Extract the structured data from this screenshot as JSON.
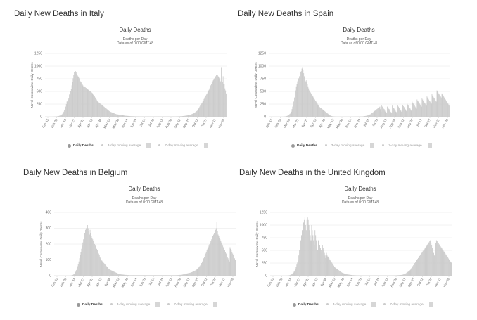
{
  "chart_data": [
    {
      "type": "bar",
      "heading": "Daily New Deaths in Italy",
      "title": "Daily Deaths",
      "subtitle": [
        "Deaths per Day",
        "Data as of 0:00 GMT+8"
      ],
      "ylabel": "Novel Coronavirus Daily Deaths",
      "ylim": [
        0,
        1250
      ],
      "yticks": [
        0,
        250,
        500,
        750,
        1000,
        1250
      ],
      "xticks": [
        "Feb 15",
        "Feb 26",
        "Mar 10",
        "Mar 21",
        "Apr 01",
        "Apr 15",
        "Apr 30",
        "May 15",
        "May 30",
        "Jun 14",
        "Jun 29",
        "Jul 14",
        "Jul 29",
        "Aug 13",
        "Aug 28",
        "Sep 12",
        "Sep 27",
        "Oct 12",
        "Oct 27",
        "Nov 11",
        "Nov 26"
      ],
      "legend": [
        "Daily Deaths",
        "3-day moving average",
        "7-day moving average"
      ],
      "values": [
        0,
        0,
        0,
        0,
        0,
        0,
        0,
        0,
        0,
        0,
        0,
        0,
        1,
        1,
        2,
        3,
        4,
        4,
        5,
        8,
        10,
        12,
        15,
        20,
        25,
        28,
        35,
        45,
        60,
        80,
        100,
        140,
        170,
        200,
        250,
        300,
        320,
        340,
        370,
        440,
        470,
        500,
        550,
        620,
        690,
        760,
        820,
        880,
        920,
        900,
        880,
        850,
        830,
        800,
        780,
        760,
        720,
        700,
        680,
        660,
        640,
        620,
        600,
        610,
        590,
        580,
        570,
        560,
        550,
        540,
        530,
        520,
        510,
        500,
        490,
        480,
        470,
        450,
        430,
        420,
        400,
        380,
        360,
        340,
        320,
        300,
        290,
        280,
        270,
        260,
        250,
        240,
        230,
        220,
        210,
        200,
        190,
        180,
        170,
        160,
        150,
        140,
        130,
        120,
        110,
        100,
        95,
        90,
        85,
        80,
        75,
        70,
        65,
        60,
        55,
        50,
        48,
        46,
        44,
        42,
        40,
        38,
        36,
        34,
        32,
        30,
        28,
        26,
        24,
        22,
        20,
        19,
        18,
        17,
        16,
        15,
        14,
        13,
        12,
        11,
        10,
        10,
        9,
        9,
        8,
        8,
        8,
        7,
        7,
        7,
        6,
        6,
        6,
        5,
        5,
        5,
        5,
        5,
        5,
        5,
        5,
        5,
        5,
        5,
        5,
        5,
        5,
        5,
        5,
        5,
        5,
        5,
        5,
        5,
        5,
        5,
        5,
        5,
        5,
        5,
        5,
        5,
        5,
        5,
        5,
        5,
        5,
        5,
        5,
        5,
        5,
        5,
        5,
        5,
        5,
        5,
        5,
        5,
        5,
        5,
        5,
        5,
        5,
        5,
        5,
        5,
        5,
        5,
        5,
        5,
        5,
        5,
        6,
        6,
        7,
        7,
        8,
        8,
        9,
        10,
        11,
        12,
        13,
        14,
        15,
        16,
        18,
        20,
        22,
        24,
        26,
        28,
        30,
        32,
        35,
        40,
        45,
        50,
        55,
        60,
        65,
        70,
        80,
        90,
        100,
        110,
        120,
        140,
        160,
        180,
        200,
        220,
        240,
        260,
        280,
        300,
        320,
        350,
        380,
        400,
        420,
        440,
        460,
        480,
        500,
        530,
        560,
        590,
        620,
        650,
        680,
        700,
        720,
        740,
        760,
        780,
        800,
        820,
        810,
        830,
        800,
        780,
        760,
        740,
        700,
        980,
        720,
        690,
        800,
        650,
        640,
        560,
        520,
        460
      ]
    },
    {
      "type": "bar",
      "heading": "Daily New Deaths in Spain",
      "title": "Daily Deaths",
      "subtitle": [
        "Deaths per Day",
        "Data as of 0:00 GMT+8"
      ],
      "ylabel": "Novel Coronavirus Daily Deaths",
      "ylim": [
        0,
        1250
      ],
      "yticks": [
        0,
        250,
        500,
        750,
        1000,
        1250
      ],
      "xticks": [
        "Feb 15",
        "Feb 26",
        "Mar 10",
        "Mar 21",
        "Apr 01",
        "Apr 15",
        "Apr 30",
        "May 15",
        "May 30",
        "Jun 14",
        "Jun 29",
        "Jul 14",
        "Jul 29",
        "Aug 13",
        "Aug 28",
        "Sep 12",
        "Sep 27",
        "Oct 12",
        "Oct 27",
        "Nov 11",
        "Nov 26"
      ],
      "legend": [
        "Daily Deaths",
        "3-day moving average",
        "7-day moving average"
      ],
      "values": [
        0,
        0,
        0,
        0,
        0,
        0,
        0,
        0,
        0,
        0,
        0,
        0,
        0,
        0,
        0,
        0,
        0,
        0,
        0,
        0,
        0,
        0,
        0,
        1,
        2,
        3,
        5,
        8,
        10,
        15,
        20,
        25,
        35,
        50,
        60,
        80,
        100,
        150,
        200,
        240,
        300,
        380,
        450,
        520,
        600,
        650,
        700,
        740,
        760,
        800,
        840,
        880,
        900,
        950,
        980,
        920,
        860,
        800,
        760,
        700,
        720,
        680,
        640,
        600,
        560,
        520,
        500,
        480,
        460,
        440,
        420,
        400,
        380,
        360,
        340,
        320,
        300,
        280,
        260,
        240,
        220,
        200,
        190,
        180,
        170,
        160,
        150,
        140,
        130,
        120,
        110,
        100,
        90,
        80,
        70,
        60,
        50,
        40,
        30,
        25,
        20,
        15,
        10,
        8,
        6,
        5,
        4,
        3,
        3,
        2,
        2,
        2,
        2,
        2,
        2,
        2,
        2,
        2,
        2,
        2,
        2,
        2,
        2,
        2,
        2,
        2,
        2,
        2,
        2,
        2,
        2,
        2,
        2,
        2,
        2,
        2,
        2,
        2,
        3,
        3,
        3,
        3,
        3,
        3,
        4,
        4,
        4,
        4,
        5,
        5,
        6,
        6,
        8,
        10,
        12,
        14,
        16,
        18,
        20,
        25,
        30,
        35,
        40,
        45,
        50,
        60,
        70,
        80,
        90,
        100,
        110,
        120,
        130,
        140,
        150,
        160,
        170,
        180,
        190,
        200,
        150,
        100,
        220,
        200,
        180,
        160,
        150,
        120,
        100,
        90,
        80,
        200,
        180,
        160,
        150,
        120,
        100,
        90,
        80,
        220,
        200,
        180,
        160,
        140,
        120,
        100,
        90,
        230,
        220,
        200,
        180,
        160,
        140,
        120,
        100,
        240,
        230,
        210,
        190,
        170,
        150,
        130,
        110,
        260,
        240,
        220,
        200,
        180,
        160,
        140,
        120,
        300,
        280,
        260,
        240,
        220,
        200,
        180,
        160,
        340,
        320,
        300,
        280,
        260,
        240,
        220,
        200,
        360,
        340,
        320,
        300,
        280,
        260,
        240,
        220,
        400,
        380,
        360,
        340,
        320,
        300,
        280,
        260,
        450,
        420,
        400,
        380,
        360,
        340,
        320,
        300,
        520,
        500,
        480,
        460,
        440,
        420,
        400,
        380,
        460,
        440,
        420,
        400,
        380,
        360,
        340,
        320,
        300,
        280,
        260,
        240,
        220,
        200
      ]
    },
    {
      "type": "bar",
      "heading": "Daily New Deaths in Belgium",
      "title": "Daily Deaths",
      "subtitle": [
        "Deaths per Day",
        "Data as of 0:00 GMT+8"
      ],
      "ylabel": "Novel Coronavirus Daily Deaths",
      "ylim": [
        0,
        400
      ],
      "yticks": [
        0,
        100,
        200,
        300,
        400
      ],
      "xticks": [
        "Feb 15",
        "Feb 26",
        "Mar 10",
        "Mar 21",
        "Apr 01",
        "Apr 15",
        "Apr 30",
        "May 15",
        "May 30",
        "Jun 14",
        "Jun 29",
        "Jul 14",
        "Jul 29",
        "Aug 13",
        "Aug 28",
        "Sep 12",
        "Sep 27",
        "Oct 12",
        "Oct 27",
        "Nov 11",
        "Nov 26"
      ],
      "legend": [
        "Daily Deaths",
        "3-day moving average",
        "7-day moving average"
      ],
      "values": [
        0,
        0,
        0,
        0,
        0,
        0,
        0,
        0,
        0,
        0,
        0,
        0,
        0,
        0,
        0,
        0,
        0,
        0,
        0,
        0,
        0,
        0,
        0,
        0,
        0,
        1,
        2,
        3,
        5,
        8,
        12,
        18,
        25,
        35,
        45,
        60,
        75,
        90,
        110,
        130,
        150,
        170,
        190,
        210,
        230,
        250,
        270,
        290,
        300,
        310,
        320,
        300,
        280,
        260,
        290,
        270,
        250,
        240,
        230,
        220,
        210,
        200,
        190,
        180,
        170,
        160,
        150,
        140,
        130,
        120,
        110,
        100,
        95,
        90,
        85,
        80,
        75,
        70,
        65,
        60,
        55,
        50,
        45,
        40,
        38,
        36,
        34,
        32,
        30,
        28,
        26,
        24,
        22,
        20,
        18,
        16,
        14,
        12,
        11,
        10,
        9,
        8,
        8,
        7,
        7,
        6,
        6,
        5,
        5,
        5,
        4,
        4,
        4,
        4,
        3,
        3,
        3,
        3,
        3,
        3,
        3,
        3,
        3,
        3,
        3,
        3,
        3,
        3,
        3,
        3,
        3,
        3,
        3,
        3,
        3,
        3,
        3,
        3,
        3,
        3,
        3,
        3,
        3,
        3,
        3,
        3,
        3,
        3,
        3,
        3,
        3,
        3,
        3,
        3,
        3,
        3,
        3,
        3,
        3,
        3,
        3,
        3,
        3,
        3,
        3,
        3,
        3,
        3,
        3,
        3,
        3,
        3,
        3,
        3,
        3,
        3,
        3,
        3,
        3,
        3,
        3,
        3,
        3,
        3,
        3,
        3,
        3,
        4,
        4,
        4,
        5,
        5,
        6,
        6,
        7,
        8,
        9,
        10,
        11,
        12,
        13,
        14,
        15,
        16,
        17,
        18,
        19,
        20,
        22,
        24,
        26,
        28,
        30,
        32,
        35,
        38,
        40,
        45,
        50,
        55,
        60,
        65,
        70,
        80,
        90,
        100,
        110,
        120,
        130,
        140,
        150,
        160,
        170,
        180,
        190,
        200,
        210,
        220,
        230,
        240,
        250,
        260,
        270,
        280,
        290,
        300,
        340,
        280,
        260,
        250,
        240,
        230,
        220,
        210,
        200,
        190,
        180,
        170,
        160,
        150,
        140,
        130,
        120,
        110,
        100,
        90,
        180,
        170,
        160,
        150,
        140,
        130,
        120,
        110,
        100
      ]
    },
    {
      "type": "bar",
      "heading": "Daily New Deaths in the United Kingdom",
      "title": "Daily Deaths",
      "subtitle": [
        "Deaths per Day",
        "Data as of 0:00 GMT+8"
      ],
      "ylabel": "Novel Coronavirus Daily Deaths",
      "ylim": [
        0,
        1250
      ],
      "yticks": [
        0,
        250,
        500,
        750,
        1000,
        1250
      ],
      "xticks": [
        "Feb 15",
        "Feb 26",
        "Mar 10",
        "Mar 21",
        "Apr 01",
        "Apr 15",
        "Apr 30",
        "May 15",
        "May 30",
        "Jun 14",
        "Jun 29",
        "Jul 14",
        "Jul 29",
        "Aug 13",
        "Aug 28",
        "Sep 12",
        "Sep 27",
        "Oct 12",
        "Oct 27",
        "Nov 11",
        "Nov 26"
      ],
      "legend": [
        "Daily Deaths",
        "3-day moving average",
        "7-day moving average"
      ],
      "values": [
        0,
        0,
        0,
        0,
        0,
        0,
        0,
        0,
        0,
        0,
        0,
        0,
        0,
        0,
        0,
        0,
        0,
        0,
        0,
        0,
        0,
        0,
        0,
        0,
        1,
        2,
        3,
        5,
        8,
        12,
        18,
        25,
        35,
        45,
        60,
        80,
        100,
        140,
        180,
        220,
        260,
        300,
        400,
        500,
        600,
        700,
        800,
        900,
        1000,
        1050,
        1100,
        1150,
        1000,
        900,
        1100,
        1150,
        1100,
        1000,
        900,
        800,
        700,
        1000,
        900,
        800,
        700,
        600,
        900,
        800,
        700,
        600,
        500,
        700,
        650,
        600,
        550,
        500,
        450,
        600,
        550,
        500,
        450,
        400,
        350,
        450,
        400,
        380,
        360,
        340,
        320,
        300,
        280,
        260,
        240,
        220,
        200,
        180,
        160,
        150,
        140,
        130,
        120,
        110,
        100,
        90,
        80,
        70,
        60,
        55,
        50,
        45,
        40,
        35,
        30,
        28,
        26,
        24,
        22,
        20,
        18,
        16,
        14,
        12,
        10,
        10,
        9,
        8,
        8,
        7,
        7,
        6,
        6,
        5,
        5,
        5,
        5,
        5,
        5,
        5,
        5,
        5,
        5,
        5,
        5,
        5,
        5,
        5,
        5,
        5,
        5,
        5,
        5,
        5,
        5,
        5,
        5,
        5,
        5,
        5,
        5,
        5,
        5,
        5,
        5,
        5,
        5,
        5,
        5,
        5,
        5,
        5,
        5,
        5,
        5,
        5,
        5,
        5,
        5,
        5,
        5,
        5,
        5,
        5,
        5,
        5,
        6,
        6,
        7,
        8,
        9,
        10,
        11,
        12,
        13,
        14,
        15,
        17,
        20,
        25,
        30,
        35,
        40,
        50,
        60,
        70,
        80,
        90,
        100,
        110,
        130,
        150,
        170,
        190,
        210,
        230,
        250,
        270,
        290,
        310,
        330,
        350,
        370,
        390,
        410,
        430,
        450,
        470,
        490,
        500,
        520,
        540,
        560,
        580,
        600,
        620,
        640,
        660,
        680,
        700,
        650,
        600,
        550,
        500,
        450,
        400,
        600,
        650,
        700,
        680,
        660,
        640,
        620,
        600,
        580,
        560,
        540,
        520,
        500,
        480,
        460,
        440,
        420,
        400,
        380,
        360,
        340,
        320,
        300,
        280,
        260
      ]
    }
  ]
}
